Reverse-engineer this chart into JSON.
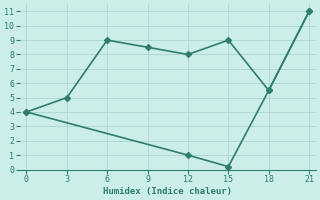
{
  "xlabel": "Humidex (Indice chaleur)",
  "line1_x": [
    0,
    3,
    6,
    9,
    12,
    15,
    18,
    21
  ],
  "line1_y": [
    4,
    5,
    9,
    8.5,
    8,
    9,
    5.5,
    11
  ],
  "line2_x": [
    0,
    12,
    15,
    18,
    21
  ],
  "line2_y": [
    4,
    1,
    0.2,
    5.5,
    11
  ],
  "line_color": "#2e7d6e",
  "bg_color": "#cceee8",
  "grid_color": "#aad6ce",
  "tick_color": "#2e7d6e",
  "xlim": [
    -0.5,
    21.5
  ],
  "ylim": [
    0,
    11.5
  ],
  "xticks": [
    0,
    3,
    6,
    9,
    12,
    15,
    18,
    21
  ],
  "yticks": [
    0,
    1,
    2,
    3,
    4,
    5,
    6,
    7,
    8,
    9,
    10,
    11
  ],
  "marker": "D",
  "marker_size": 3,
  "line_width": 1.2,
  "font_family": "monospace"
}
